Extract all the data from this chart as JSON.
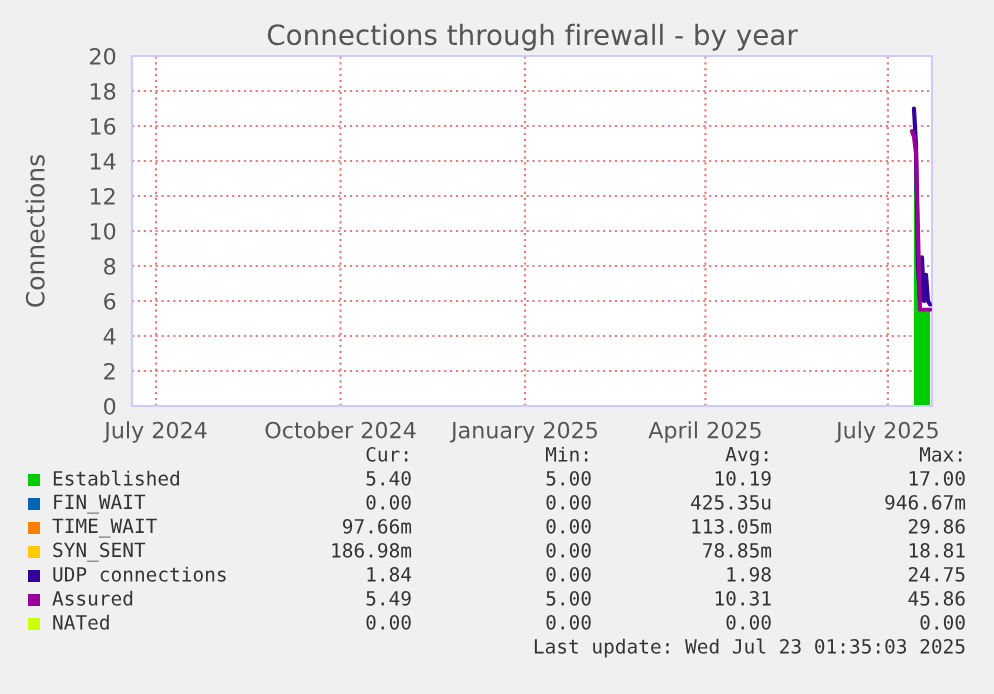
{
  "chart_data": {
    "type": "line",
    "title": "Connections through firewall - by year",
    "ylabel": "Connections",
    "x": [
      "2025-07-13",
      "2025-07-14",
      "2025-07-15",
      "2025-07-16",
      "2025-07-17",
      "2025-07-18",
      "2025-07-19",
      "2025-07-20",
      "2025-07-21",
      "2025-07-22"
    ],
    "series": [
      {
        "name": "Established",
        "type": "area",
        "color": "#00cc00",
        "values": [
          null,
          15.5,
          15,
          10,
          5.4,
          5.4,
          5.4,
          5.4,
          5.4,
          5.4
        ]
      },
      {
        "name": "FIN_WAIT",
        "color": "#0066b3",
        "values": [
          null,
          null,
          null,
          null,
          null,
          null,
          null,
          null,
          null,
          null
        ]
      },
      {
        "name": "TIME_WAIT",
        "color": "#ff8000",
        "values": [
          null,
          null,
          null,
          null,
          null,
          null,
          null,
          null,
          null,
          null
        ]
      },
      {
        "name": "SYN_SENT",
        "color": "#ffcc00",
        "values": [
          null,
          null,
          null,
          null,
          null,
          null,
          null,
          null,
          null,
          null
        ]
      },
      {
        "name": "UDP connections",
        "color": "#330099",
        "values": [
          null,
          17,
          15,
          8,
          6,
          8.5,
          6,
          7.5,
          6,
          5.8
        ]
      },
      {
        "name": "Assured",
        "color": "#990099",
        "values": [
          15.7,
          15.4,
          14.5,
          10,
          5.5,
          5.5,
          5.5,
          5.5,
          5.5,
          5.5
        ]
      },
      {
        "name": "NATed",
        "color": "#ccff00",
        "values": [
          null,
          null,
          null,
          null,
          null,
          null,
          null,
          null,
          null,
          null
        ]
      }
    ],
    "xlim": [
      "2024-06-19",
      "2025-07-23"
    ],
    "xticks": [
      {
        "value": "2024-07-01",
        "label": "July 2024"
      },
      {
        "value": "2024-10-01",
        "label": "October 2024"
      },
      {
        "value": "2025-01-01",
        "label": "January 2025"
      },
      {
        "value": "2025-04-01",
        "label": "April 2025"
      },
      {
        "value": "2025-07-01",
        "label": "July 2025"
      }
    ],
    "ylim": [
      0,
      20
    ],
    "yticks": [
      0,
      2,
      4,
      6,
      8,
      10,
      12,
      14,
      16,
      18,
      20
    ],
    "grid": true,
    "legend": "bottom",
    "annotations": [
      "Cur:",
      "Min:",
      "Avg:",
      "Max:",
      "5.40",
      "5.00",
      "10.19",
      "17.00",
      "0.00",
      "0.00",
      "425.35u",
      "946.67m",
      "97.66m",
      "0.00",
      "113.05m",
      "29.86",
      "186.98m",
      "0.00",
      "78.85m",
      "18.81",
      "1.84",
      "0.00",
      "1.98",
      "24.75",
      "5.49",
      "5.00",
      "10.31",
      "45.86",
      "0.00",
      "0.00",
      "0.00",
      "0.00",
      "Last update: Wed Jul 23 01:35:03 2025"
    ]
  }
}
